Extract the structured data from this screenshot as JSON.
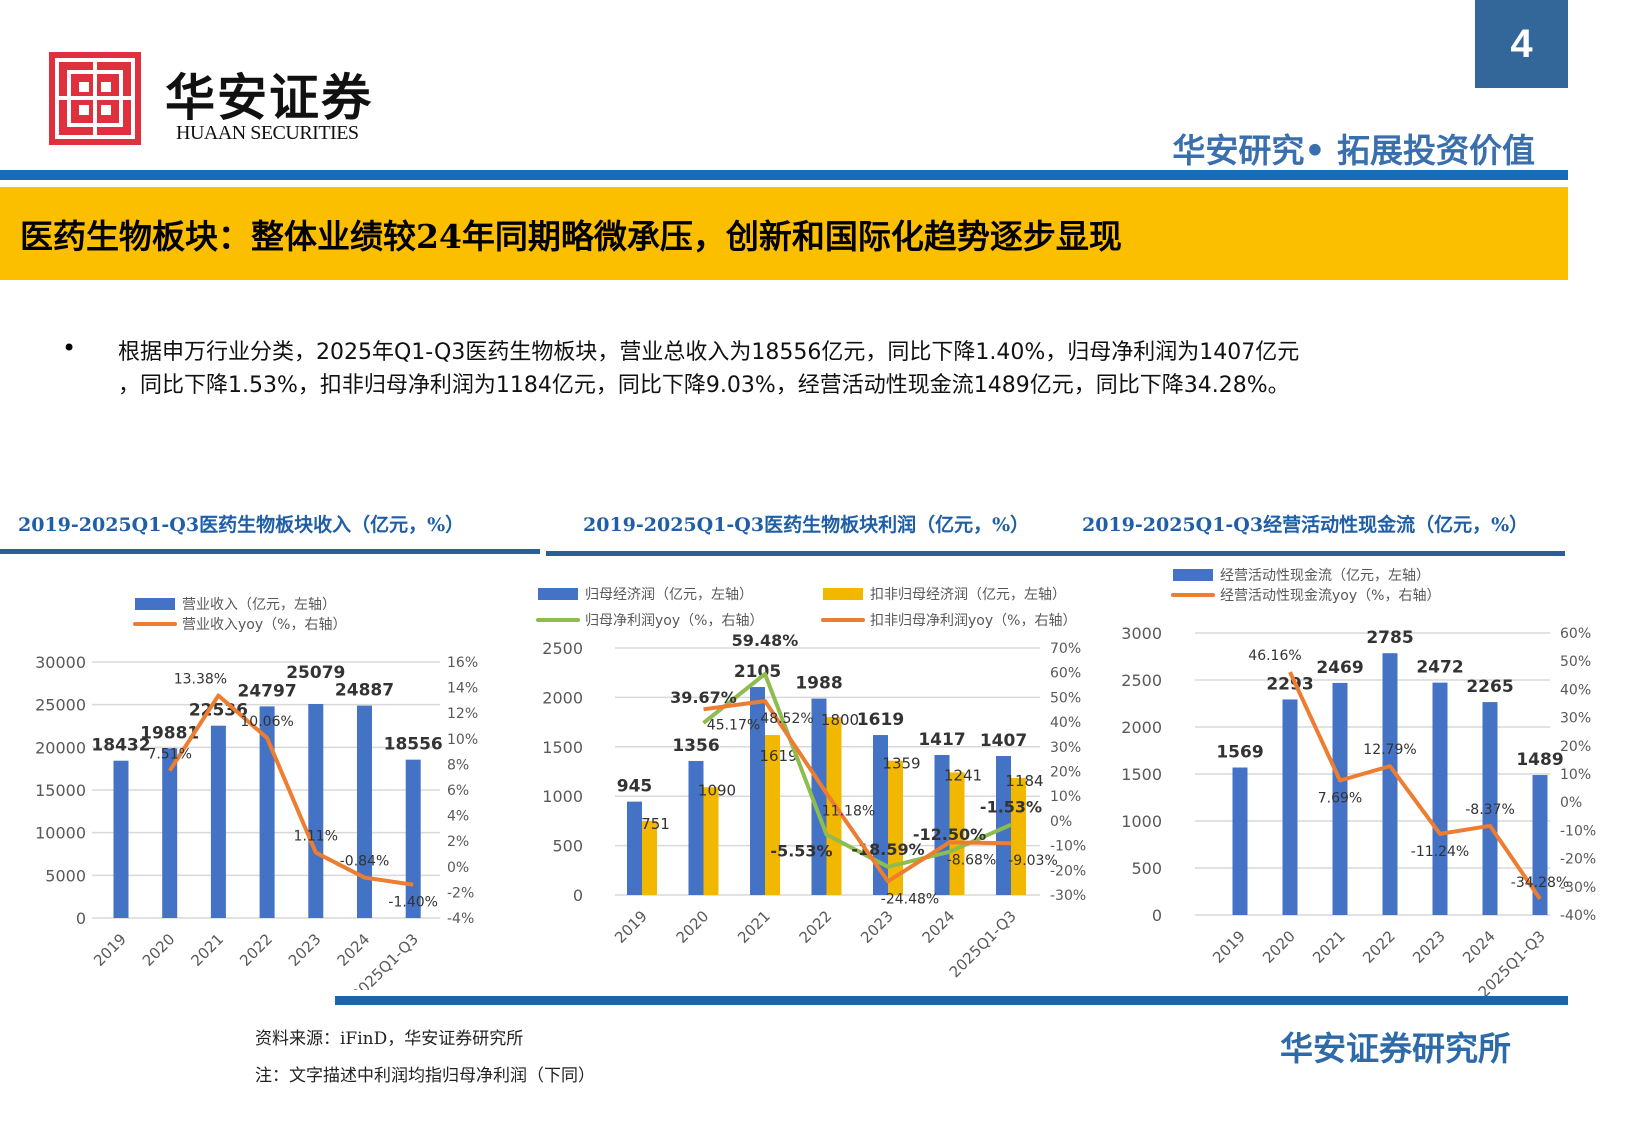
{
  "page_number": "4",
  "logo": {
    "cn": "华安证券",
    "en": "HUAAN SECURITIES",
    "color": "#e0303e"
  },
  "tagline": "华安研究• 拓展投资价值",
  "title": "医药生物板块：整体业绩较24年同期略微承压，创新和国际化趋势逐步显现",
  "bullet": {
    "line1": "根据申万行业分类，2025年Q1-Q3医药生物板块，营业总收入为18556亿元，同比下降1.40%，归母净利润为1407亿元",
    "line2": "，同比下降1.53%，扣非归母净利润为1184亿元，同比下降9.03%，经营活动性现金流1489亿元，同比下降34.28%。"
  },
  "footer": {
    "source": "资料来源：iFinD，华安证券研究所",
    "note": "注：文字描述中利润均指归母净利润（下同）",
    "org": "华安证券研究所"
  },
  "colors": {
    "blue": "#4472c4",
    "gold": "#f2b800",
    "orange": "#ed7d31",
    "green": "#8fbc4f",
    "accent": "#1f63a8",
    "band": "#fcbf00"
  },
  "chart_data": [
    {
      "type": "bar+line",
      "title": "2019-2025Q1-Q3医药生物板块收入（亿元，%）",
      "categories": [
        "2019",
        "2020",
        "2021",
        "2022",
        "2023",
        "2024",
        "2025Q1-Q3"
      ],
      "ylim_left": [
        0,
        30000
      ],
      "yticks_left": [
        "0",
        "5000",
        "10000",
        "15000",
        "20000",
        "25000",
        "30000"
      ],
      "ylim_right": [
        -4,
        16
      ],
      "yticks_right": [
        "-4%",
        "-2%",
        "0%",
        "2%",
        "4%",
        "6%",
        "8%",
        "10%",
        "12%",
        "14%",
        "16%"
      ],
      "grid": true,
      "legend": "top",
      "bars": [
        {
          "name": "营业收入（亿元，左轴）",
          "color": "#4472c4",
          "values": [
            18432,
            19881,
            22536,
            24797,
            25079,
            24887,
            18556
          ],
          "labels": [
            "18432",
            "19881",
            "22536",
            "24797",
            "25079",
            "24887",
            "18556"
          ]
        }
      ],
      "lines": [
        {
          "name": "营业收入yoy（%，右轴）",
          "color": "#ed7d31",
          "values": [
            null,
            7.51,
            13.38,
            10.06,
            1.11,
            -0.84,
            -1.4
          ],
          "labels": [
            "",
            "7.51%",
            "13.38%",
            "10.06%",
            "1.11%",
            "-0.84%",
            "-1.40%"
          ]
        }
      ]
    },
    {
      "type": "bar+line",
      "title": "2019-2025Q1-Q3医药生物板块利润（亿元，%）",
      "categories": [
        "2019",
        "2020",
        "2021",
        "2022",
        "2023",
        "2024",
        "2025Q1-Q3"
      ],
      "ylim_left": [
        0,
        2500
      ],
      "yticks_left": [
        "0",
        "500",
        "1000",
        "1500",
        "2000",
        "2500"
      ],
      "ylim_right": [
        -30,
        70
      ],
      "yticks_right": [
        "-30%",
        "-20%",
        "-10%",
        "0%",
        "10%",
        "20%",
        "30%",
        "40%",
        "50%",
        "60%",
        "70%"
      ],
      "grid": true,
      "legend": "top",
      "bars": [
        {
          "name": "归母经济润（亿元，左轴）",
          "color": "#4472c4",
          "values": [
            945,
            1356,
            2105,
            1988,
            1619,
            1417,
            1407
          ],
          "labels": [
            "945",
            "1356",
            "2105",
            "1988",
            "1619",
            "1417",
            "1407"
          ]
        },
        {
          "name": "扣非归母经济润（亿元，左轴）",
          "color": "#f2b800",
          "values": [
            751,
            1090,
            1619,
            1800,
            1359,
            1241,
            1184
          ],
          "labels": [
            "751",
            "1090",
            "1619",
            "1800",
            "1359",
            "1241",
            "1184"
          ]
        }
      ],
      "lines": [
        {
          "name": "归母净利润yoy（%，右轴）",
          "color": "#8fbc4f",
          "values": [
            null,
            39.67,
            59.48,
            -5.53,
            -18.59,
            -12.5,
            -1.53
          ],
          "labels": [
            "",
            "39.67%",
            "59.48%",
            "-5.53%",
            "-18.59%",
            "-12.50%",
            "-1.53%"
          ]
        },
        {
          "name": "扣非归母净利润yoy（%，右轴）",
          "color": "#ed7d31",
          "values": [
            null,
            45.17,
            48.52,
            11.18,
            -24.48,
            -8.68,
            -9.03
          ],
          "labels": [
            "",
            "45.17%",
            "48.52%",
            "11.18%",
            "-24.48%",
            "-8.68%",
            "-9.03%"
          ]
        }
      ]
    },
    {
      "type": "bar+line",
      "title": "2019-2025Q1-Q3经营活动性现金流（亿元，%）",
      "categories": [
        "2019",
        "2020",
        "2021",
        "2022",
        "2023",
        "2024",
        "2025Q1-Q3"
      ],
      "ylim_left": [
        0,
        3000
      ],
      "yticks_left": [
        "0",
        "500",
        "1000",
        "1500",
        "2000",
        "2500",
        "3000"
      ],
      "ylim_right": [
        -40,
        60
      ],
      "yticks_right": [
        "-40%",
        "-30%",
        "-20%",
        "-10%",
        "0%",
        "10%",
        "20%",
        "30%",
        "40%",
        "50%",
        "60%"
      ],
      "grid": true,
      "legend": "top",
      "bars": [
        {
          "name": "经营活动性现金流（亿元，左轴）",
          "color": "#4472c4",
          "values": [
            1569,
            2293,
            2469,
            2785,
            2472,
            2265,
            1489
          ],
          "labels": [
            "1569",
            "2293",
            "2469",
            "2785",
            "2472",
            "2265",
            "1489"
          ]
        }
      ],
      "lines": [
        {
          "name": "经营活动性现金流yoy（%，右轴）",
          "color": "#ed7d31",
          "values": [
            null,
            46.16,
            7.69,
            12.79,
            -11.24,
            -8.37,
            -34.28
          ],
          "labels": [
            "",
            "46.16%",
            "7.69%",
            "12.79%",
            "-11.24%",
            "-8.37%",
            "-34.28%"
          ]
        }
      ]
    }
  ]
}
